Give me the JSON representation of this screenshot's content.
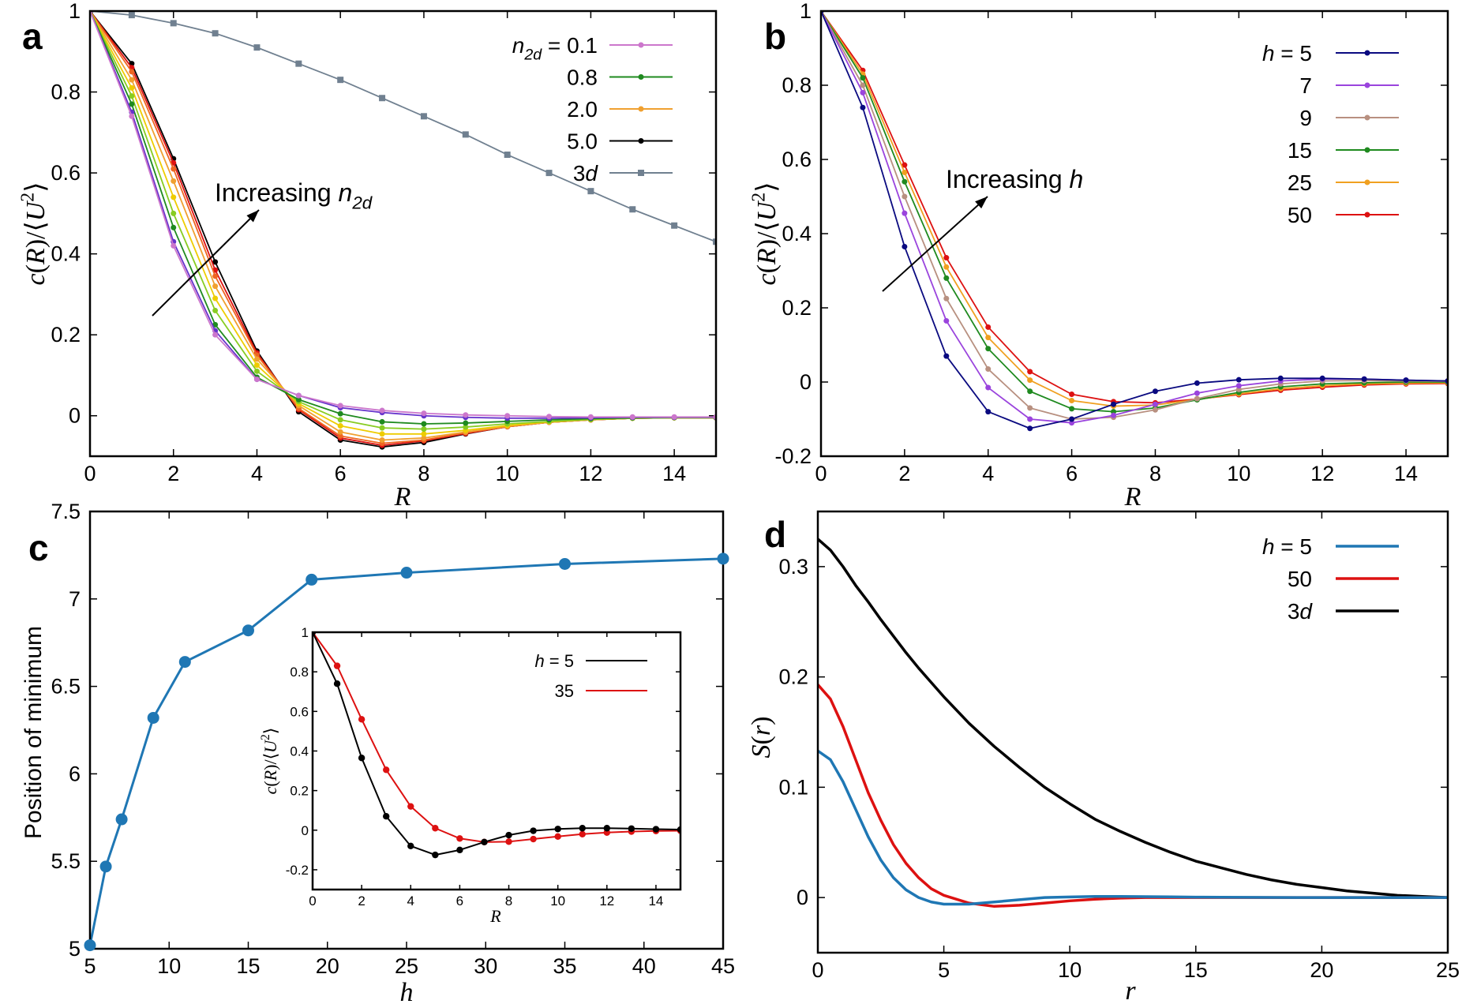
{
  "chart_data": [
    {
      "panel": "a",
      "type": "line",
      "xlabel": "R",
      "ylabel": "c(R)/⟨U²⟩",
      "xlim": [
        0,
        15
      ],
      "ylim": [
        -0.1,
        1
      ],
      "xticks": [
        "0",
        "2",
        "4",
        "6",
        "8",
        "10",
        "12",
        "14"
      ],
      "yticks": [
        "0",
        "0.2",
        "0.4",
        "0.6",
        "0.8",
        "1"
      ],
      "annotation": "Increasing n₂d",
      "legend_position": "top-right",
      "x": [
        0,
        1,
        2,
        3,
        4,
        5,
        6,
        7,
        8,
        9,
        10,
        11,
        12,
        13,
        14,
        15
      ],
      "series": [
        {
          "name": "n2d = 0.1",
          "legend": true,
          "color": "#cc77cc",
          "values": [
            1,
            0.74,
            0.42,
            0.2,
            0.09,
            0.05,
            0.025,
            0.013,
            0.006,
            0.002,
            0,
            -0.002,
            -0.003,
            -0.003,
            -0.003,
            -0.003
          ]
        },
        {
          "name": "",
          "legend": false,
          "color": "#6633cc",
          "values": [
            1,
            0.75,
            0.43,
            0.21,
            0.09,
            0.05,
            0.02,
            0.008,
            0,
            -0.004,
            -0.006,
            -0.006,
            -0.005,
            -0.004,
            -0.004,
            -0.004
          ]
        },
        {
          "name": "0.8",
          "legend": true,
          "color": "#1f8a1f",
          "values": [
            1,
            0.77,
            0.465,
            0.225,
            0.095,
            0.04,
            0.005,
            -0.015,
            -0.02,
            -0.018,
            -0.014,
            -0.01,
            -0.007,
            -0.005,
            -0.004,
            -0.004
          ]
        },
        {
          "name": "",
          "legend": false,
          "color": "#88cc22",
          "values": [
            1,
            0.79,
            0.5,
            0.26,
            0.11,
            0.035,
            -0.01,
            -0.03,
            -0.033,
            -0.028,
            -0.02,
            -0.014,
            -0.009,
            -0.006,
            -0.005,
            -0.005
          ]
        },
        {
          "name": "",
          "legend": false,
          "color": "#eecc00",
          "values": [
            1,
            0.81,
            0.54,
            0.29,
            0.125,
            0.03,
            -0.025,
            -0.045,
            -0.045,
            -0.036,
            -0.024,
            -0.015,
            -0.009,
            -0.006,
            -0.005,
            -0.005
          ]
        },
        {
          "name": "2.0",
          "legend": true,
          "color": "#f0a030",
          "values": [
            1,
            0.83,
            0.58,
            0.32,
            0.14,
            0.025,
            -0.04,
            -0.06,
            -0.055,
            -0.04,
            -0.026,
            -0.016,
            -0.01,
            -0.006,
            -0.005,
            -0.005
          ]
        },
        {
          "name": "",
          "legend": false,
          "color": "#ee6622",
          "values": [
            1,
            0.85,
            0.61,
            0.345,
            0.15,
            0.018,
            -0.05,
            -0.068,
            -0.06,
            -0.042,
            -0.027,
            -0.016,
            -0.01,
            -0.006,
            -0.005,
            -0.005
          ]
        },
        {
          "name": "",
          "legend": false,
          "color": "#dd1111",
          "values": [
            1,
            0.86,
            0.625,
            0.36,
            0.155,
            0.015,
            -0.055,
            -0.073,
            -0.062,
            -0.044,
            -0.027,
            -0.016,
            -0.01,
            -0.006,
            -0.005,
            -0.005
          ]
        },
        {
          "name": "5.0",
          "legend": true,
          "color": "#000000",
          "values": [
            1,
            0.87,
            0.635,
            0.38,
            0.16,
            0.01,
            -0.06,
            -0.077,
            -0.066,
            -0.045,
            -0.027,
            -0.016,
            -0.01,
            -0.006,
            -0.005,
            -0.005
          ]
        },
        {
          "name": "3d",
          "legend": true,
          "color": "#708090",
          "marker": "square",
          "values": [
            1,
            0.99,
            0.97,
            0.945,
            0.91,
            0.87,
            0.83,
            0.785,
            0.74,
            0.695,
            0.645,
            0.6,
            0.555,
            0.51,
            0.47,
            0.43
          ]
        }
      ]
    },
    {
      "panel": "b",
      "type": "line",
      "xlabel": "R",
      "ylabel": "c(R)/⟨U²⟩",
      "xlim": [
        0,
        15
      ],
      "ylim": [
        -0.2,
        1
      ],
      "xticks": [
        "0",
        "2",
        "4",
        "6",
        "8",
        "10",
        "12",
        "14"
      ],
      "yticks": [
        "-0.2",
        "0",
        "0.2",
        "0.4",
        "0.6",
        "0.8",
        "1"
      ],
      "annotation": "Increasing h",
      "legend_position": "top-right",
      "x": [
        0,
        1,
        2,
        3,
        4,
        5,
        6,
        7,
        8,
        9,
        10,
        11,
        12,
        13,
        14,
        15
      ],
      "series": [
        {
          "name": "h = 5",
          "color": "#0a0a80",
          "values": [
            1,
            0.74,
            0.365,
            0.07,
            -0.08,
            -0.125,
            -0.1,
            -0.06,
            -0.025,
            -0.003,
            0.006,
            0.01,
            0.01,
            0.008,
            0.005,
            0.003
          ]
        },
        {
          "name": "7",
          "color": "#9a44dd",
          "values": [
            1,
            0.78,
            0.455,
            0.165,
            -0.015,
            -0.1,
            -0.11,
            -0.09,
            -0.06,
            -0.03,
            -0.01,
            0.003,
            0.008,
            0.008,
            0.005,
            0.003
          ]
        },
        {
          "name": "9",
          "color": "#b89080",
          "values": [
            1,
            0.8,
            0.5,
            0.225,
            0.035,
            -0.07,
            -0.1,
            -0.095,
            -0.075,
            -0.045,
            -0.02,
            -0.005,
            0.003,
            0.004,
            0.003,
            0.002
          ]
        },
        {
          "name": "15",
          "color": "#1f8a1f",
          "values": [
            1,
            0.82,
            0.54,
            0.28,
            0.09,
            -0.025,
            -0.072,
            -0.08,
            -0.07,
            -0.048,
            -0.028,
            -0.013,
            -0.005,
            -0.002,
            0,
            0
          ]
        },
        {
          "name": "25",
          "color": "#f0a020",
          "values": [
            1,
            0.83,
            0.565,
            0.31,
            0.12,
            0.005,
            -0.05,
            -0.065,
            -0.062,
            -0.047,
            -0.032,
            -0.018,
            -0.01,
            -0.005,
            -0.003,
            -0.002
          ]
        },
        {
          "name": "50",
          "color": "#dd1111",
          "values": [
            1,
            0.84,
            0.585,
            0.335,
            0.148,
            0.028,
            -0.033,
            -0.053,
            -0.056,
            -0.046,
            -0.034,
            -0.022,
            -0.014,
            -0.008,
            -0.005,
            -0.004
          ]
        }
      ]
    },
    {
      "panel": "c",
      "type": "line",
      "xlabel": "h",
      "ylabel": "Position of minimum",
      "xlim": [
        5,
        45
      ],
      "ylim": [
        5,
        7.5
      ],
      "xticks": [
        "5",
        "10",
        "15",
        "20",
        "25",
        "30",
        "35",
        "40",
        "45"
      ],
      "yticks": [
        "5",
        "5.5",
        "6",
        "6.5",
        "7",
        "7.5"
      ],
      "x": [
        5,
        6,
        7,
        9,
        11,
        15,
        19,
        25,
        35,
        45
      ],
      "series": [
        {
          "name": "",
          "color": "#1f77b4",
          "values": [
            5.02,
            5.47,
            5.74,
            6.32,
            6.64,
            6.82,
            7.11,
            7.15,
            7.2,
            7.23
          ]
        }
      ],
      "inset": {
        "type": "line",
        "xlabel": "R",
        "ylabel": "c(R)/⟨U²⟩",
        "xlim": [
          0,
          15
        ],
        "ylim": [
          -0.3,
          1
        ],
        "xticks": [
          "0",
          "2",
          "4",
          "6",
          "8",
          "10",
          "12",
          "14"
        ],
        "yticks": [
          "-0.2",
          "0",
          "0.2",
          "0.4",
          "0.6",
          "0.8",
          "1"
        ],
        "legend_position": "top-right",
        "x": [
          0,
          1,
          2,
          3,
          4,
          5,
          6,
          7,
          8,
          9,
          10,
          11,
          12,
          13,
          14,
          15
        ],
        "series": [
          {
            "name": "h = 5",
            "color": "#000000",
            "values": [
              1,
              0.74,
              0.365,
              0.07,
              -0.08,
              -0.125,
              -0.1,
              -0.06,
              -0.025,
              -0.003,
              0.006,
              0.01,
              0.01,
              0.008,
              0.005,
              0.003
            ]
          },
          {
            "name": "35",
            "color": "#dd1111",
            "values": [
              1,
              0.83,
              0.56,
              0.305,
              0.12,
              0.01,
              -0.042,
              -0.06,
              -0.058,
              -0.045,
              -0.032,
              -0.02,
              -0.012,
              -0.007,
              -0.004,
              -0.003
            ]
          }
        ]
      }
    },
    {
      "panel": "d",
      "type": "line",
      "xlabel": "r",
      "ylabel": "S(r)",
      "xlim": [
        0,
        25
      ],
      "ylim": [
        -0.05,
        0.35
      ],
      "xticks": [
        "0",
        "5",
        "10",
        "15",
        "20",
        "25"
      ],
      "yticks": [
        "0",
        "0.1",
        "0.2",
        "0.3"
      ],
      "legend_position": "top-right",
      "x": [
        0,
        0.5,
        1,
        1.5,
        2,
        2.5,
        3,
        3.5,
        4,
        4.5,
        5,
        6,
        7,
        8,
        9,
        10,
        11,
        12,
        13,
        14,
        15,
        16,
        17,
        18,
        19,
        20,
        21,
        22,
        23,
        24,
        25
      ],
      "series": [
        {
          "name": "h = 5",
          "color": "#1f77b4",
          "values": [
            0.133,
            0.125,
            0.105,
            0.08,
            0.055,
            0.034,
            0.018,
            0.007,
            0,
            -0.004,
            -0.006,
            -0.006,
            -0.004,
            -0.002,
            0,
            0.0005,
            0.001,
            0.001,
            0.0008,
            0.0006,
            0.0004,
            0.0003,
            0.0002,
            0.0001,
            0,
            0,
            0,
            0,
            0,
            0,
            0
          ]
        },
        {
          "name": "50",
          "color": "#dd1111",
          "values": [
            0.193,
            0.18,
            0.155,
            0.125,
            0.095,
            0.07,
            0.048,
            0.031,
            0.018,
            0.008,
            0.002,
            -0.005,
            -0.008,
            -0.007,
            -0.005,
            -0.003,
            -0.0015,
            -0.0005,
            0,
            0,
            0,
            0,
            0,
            0,
            0,
            0,
            0,
            0,
            0,
            0,
            0
          ]
        },
        {
          "name": "3d",
          "color": "#000000",
          "values": [
            0.325,
            0.315,
            0.3,
            0.283,
            0.268,
            0.252,
            0.237,
            0.222,
            0.208,
            0.195,
            0.182,
            0.158,
            0.137,
            0.118,
            0.1,
            0.085,
            0.071,
            0.06,
            0.05,
            0.041,
            0.033,
            0.027,
            0.021,
            0.016,
            0.012,
            0.009,
            0.006,
            0.004,
            0.002,
            0.001,
            0
          ]
        }
      ]
    }
  ]
}
